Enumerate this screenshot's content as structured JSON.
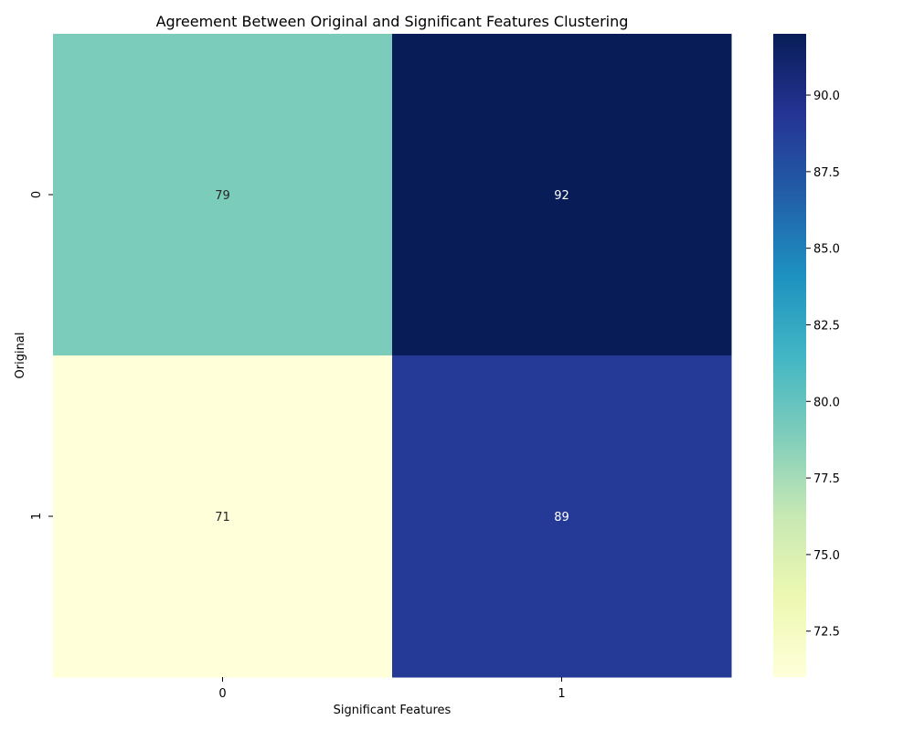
{
  "chart_data": {
    "type": "heatmap",
    "title": "Agreement Between Original and Significant Features Clustering",
    "xlabel": "Significant Features",
    "ylabel": "Original",
    "x_categories": [
      "0",
      "1"
    ],
    "y_categories": [
      "0",
      "1"
    ],
    "values": [
      [
        79,
        92
      ],
      [
        71,
        89
      ]
    ],
    "colormap": "YlGnBu",
    "colorbar": {
      "vmin": 71,
      "vmax": 92,
      "ticks": [
        72.5,
        75.0,
        77.5,
        80.0,
        82.5,
        85.0,
        87.5,
        90.0
      ],
      "tick_labels": [
        "72.5",
        "75.0",
        "77.5",
        "80.0",
        "82.5",
        "85.0",
        "87.5",
        "90.0"
      ]
    },
    "annotation_colors": {
      "light": "#262626",
      "dark": "#ffffff"
    }
  }
}
